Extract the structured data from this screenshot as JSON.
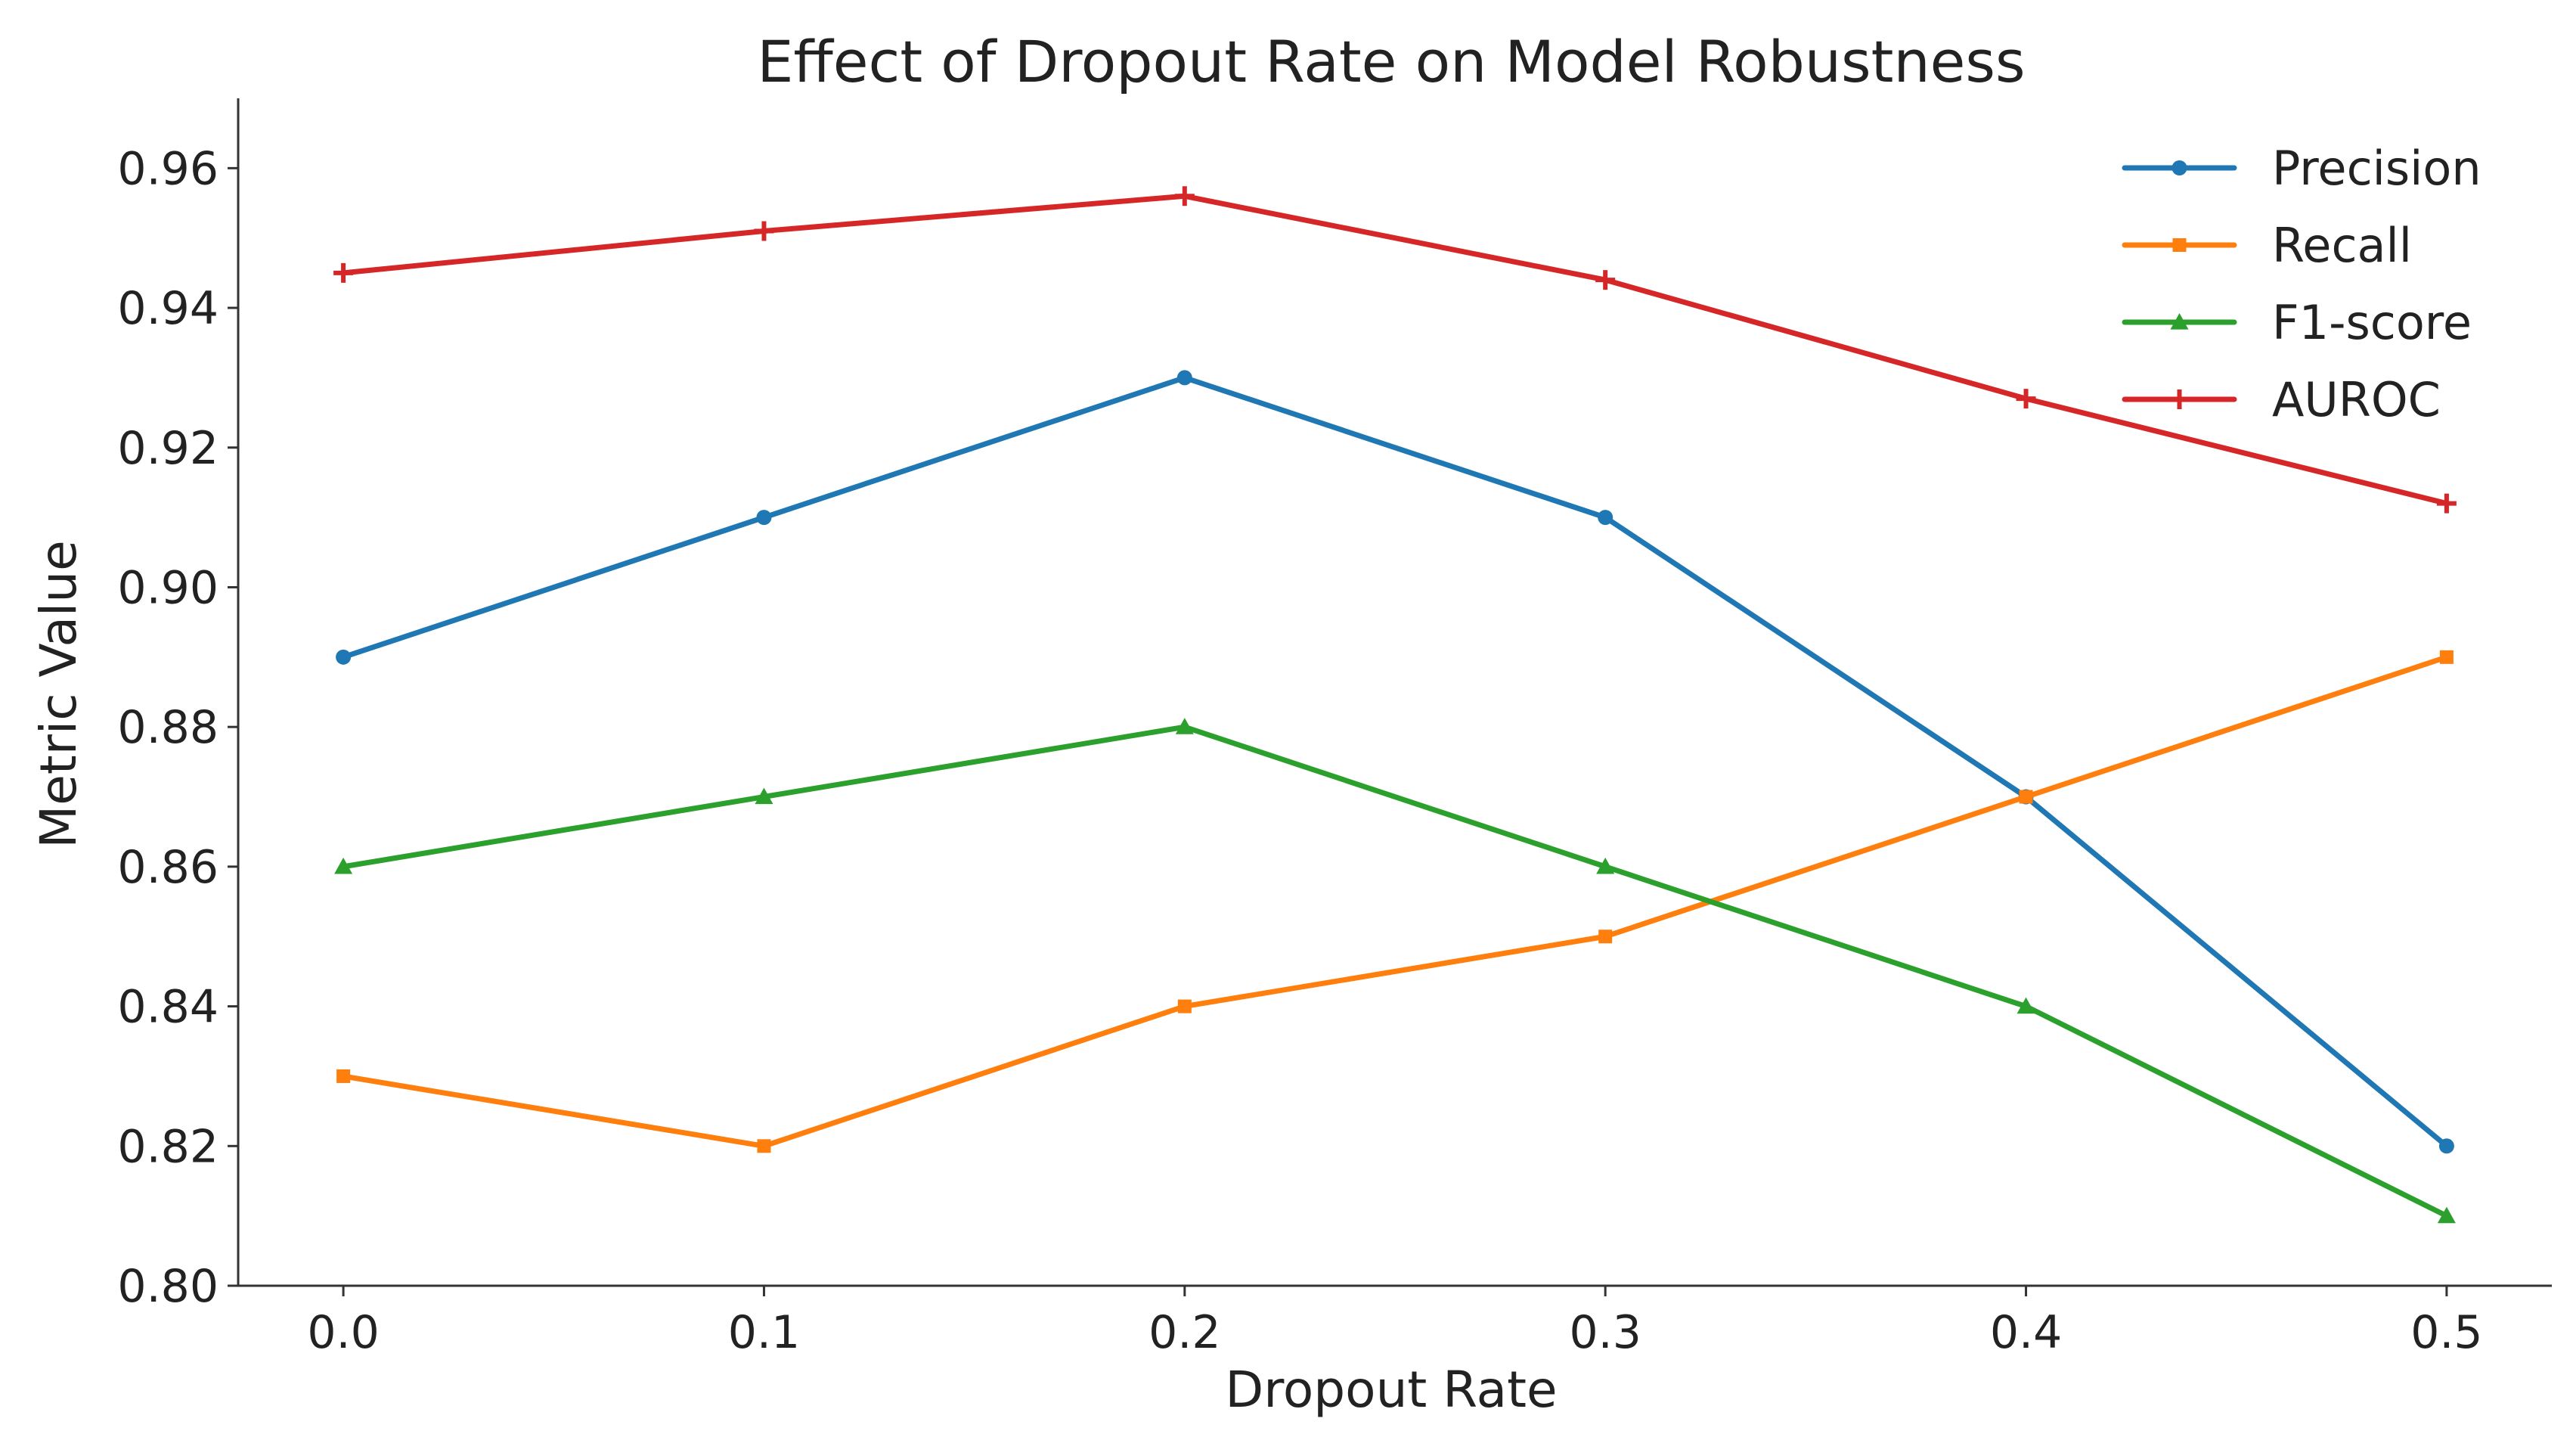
{
  "chart_data": {
    "type": "line",
    "title": "Effect of Dropout Rate on Model Robustness",
    "xlabel": "Dropout Rate",
    "ylabel": "Metric Value",
    "x": [
      0.0,
      0.1,
      0.2,
      0.3,
      0.4,
      0.5
    ],
    "x_tick_labels": [
      "0.0",
      "0.1",
      "0.2",
      "0.3",
      "0.4",
      "0.5"
    ],
    "y_ticks": [
      0.8,
      0.82,
      0.84,
      0.86,
      0.88,
      0.9,
      0.92,
      0.94,
      0.96
    ],
    "y_tick_labels": [
      "0.80",
      "0.82",
      "0.84",
      "0.86",
      "0.88",
      "0.90",
      "0.92",
      "0.94",
      "0.96"
    ],
    "xlim": [
      -0.025,
      0.525
    ],
    "ylim": [
      0.8,
      0.97
    ],
    "grid": false,
    "legend_position": "top-right",
    "series": [
      {
        "name": "Precision",
        "color": "#1f77b4",
        "marker": "circle",
        "values": [
          0.89,
          0.91,
          0.93,
          0.91,
          0.87,
          0.82
        ]
      },
      {
        "name": "Recall",
        "color": "#ff7f0e",
        "marker": "square",
        "values": [
          0.83,
          0.82,
          0.84,
          0.85,
          0.87,
          0.89
        ]
      },
      {
        "name": "F1-score",
        "color": "#2ca02c",
        "marker": "triangle",
        "values": [
          0.86,
          0.87,
          0.88,
          0.86,
          0.84,
          0.81
        ]
      },
      {
        "name": "AUROC",
        "color": "#d62728",
        "marker": "plus",
        "values": [
          0.945,
          0.951,
          0.956,
          0.944,
          0.927,
          0.912
        ]
      }
    ]
  }
}
